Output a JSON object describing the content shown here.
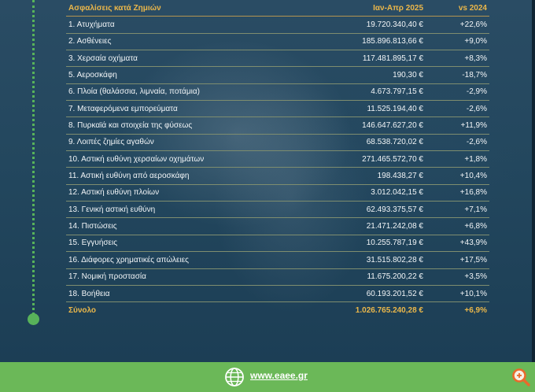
{
  "table": {
    "headers": {
      "category": "Ασφαλίσεις κατά Ζημιών",
      "period": "Ιαν-Απρ 2025",
      "change": "vs 2024"
    },
    "rows": [
      {
        "category": "1. Ατυχήματα",
        "period": "19.720.340,40 €",
        "change": "+22,6%"
      },
      {
        "category": "2. Ασθένειες",
        "period": "185.896.813,66 €",
        "change": "+9,0%"
      },
      {
        "category": "3. Χερσαία οχήματα",
        "period": "117.481.895,17 €",
        "change": "+8,3%"
      },
      {
        "category": "5. Αεροσκάφη",
        "period": "190,30 €",
        "change": "-18,7%"
      },
      {
        "category": "6. Πλοία (θαλάσσια, λιμναία, ποτάμια)",
        "period": "4.673.797,15 €",
        "change": "-2,9%"
      },
      {
        "category": "7. Μεταφερόμενα εμπορεύματα",
        "period": "11.525.194,40 €",
        "change": "-2,6%"
      },
      {
        "category": "8. Πυρκαϊά και στοιχεία της φύσεως",
        "period": "146.647.627,20 €",
        "change": "+11,9%"
      },
      {
        "category": "9. Λοιπές ζημίες αγαθών",
        "period": "68.538.720,02 €",
        "change": "-2,6%"
      },
      {
        "category": "10. Αστική ευθύνη χερσαίων οχημάτων",
        "period": "271.465.572,70 €",
        "change": "+1,8%"
      },
      {
        "category": "11. Αστική ευθύνη από αεροσκάφη",
        "period": "198.438,27 €",
        "change": "+10,4%"
      },
      {
        "category": "12. Αστική ευθύνη πλοίων",
        "period": "3.012.042,15 €",
        "change": "+16,8%"
      },
      {
        "category": "13. Γενική αστική ευθύνη",
        "period": "62.493.375,57 €",
        "change": "+7,1%"
      },
      {
        "category": "14. Πιστώσεις",
        "period": "21.471.242,08 €",
        "change": "+6,8%"
      },
      {
        "category": "15. Εγγυήσεις",
        "period": "10.255.787,19 €",
        "change": "+43,9%"
      },
      {
        "category": "16. Διάφορες χρηματικές απώλειες",
        "period": "31.515.802,28 €",
        "change": "+17,5%"
      },
      {
        "category": "17. Νομική προστασία",
        "period": "11.675.200,22 €",
        "change": "+3,5%"
      },
      {
        "category": "18. Βοήθεια",
        "period": "60.193.201,52 €",
        "change": "+10,1%"
      }
    ],
    "total": {
      "category": "Σύνολο",
      "period": "1.026.765.240,28 €",
      "change": "+6,9%"
    }
  },
  "footer": {
    "website": "www.eaee.gr",
    "globe_icon": "globe-icon",
    "zoom_icon": "magnifier-icon"
  },
  "colors": {
    "header_gold": "#ebb74a",
    "footer_green": "#6bb858",
    "timeline_green": "#58b35a",
    "background": "#1b3c52"
  }
}
